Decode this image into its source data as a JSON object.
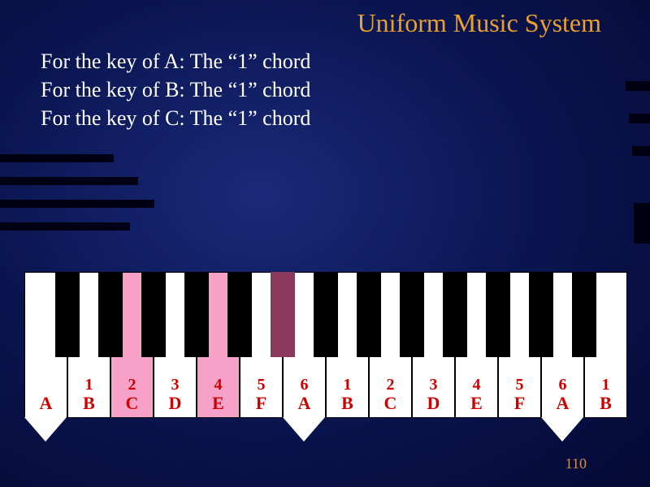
{
  "title": "Uniform Music System",
  "lines": [
    "For the key of A: The “1” chord",
    "For the key of B: The “1” chord",
    "For the key of C: The “1” chord"
  ],
  "page_number": "110",
  "keyboard": {
    "white_key_width": 53,
    "white_keys": [
      {
        "letter": "A",
        "num": "",
        "arrow": true,
        "highlight": false
      },
      {
        "letter": "B",
        "num": "1",
        "arrow": false,
        "highlight": false
      },
      {
        "letter": "C",
        "num": "2",
        "arrow": false,
        "highlight": true
      },
      {
        "letter": "D",
        "num": "3",
        "arrow": false,
        "highlight": false
      },
      {
        "letter": "E",
        "num": "4",
        "arrow": false,
        "highlight": true
      },
      {
        "letter": "F",
        "num": "5",
        "arrow": false,
        "highlight": false
      },
      {
        "letter": "A",
        "num": "6",
        "arrow": true,
        "highlight": false
      },
      {
        "letter": "B",
        "num": "1",
        "arrow": false,
        "highlight": false
      },
      {
        "letter": "C",
        "num": "2",
        "arrow": false,
        "highlight": false
      },
      {
        "letter": "D",
        "num": "3",
        "arrow": false,
        "highlight": false
      },
      {
        "letter": "E",
        "num": "4",
        "arrow": false,
        "highlight": false
      },
      {
        "letter": "F",
        "num": "5",
        "arrow": false,
        "highlight": false
      },
      {
        "letter": "A",
        "num": "6",
        "arrow": true,
        "highlight": false
      },
      {
        "letter": "B",
        "num": "1",
        "arrow": false,
        "highlight": false
      }
    ],
    "black_keys": [
      {
        "after_white_index": 0,
        "highlight": false
      },
      {
        "after_white_index": 1,
        "highlight": false
      },
      {
        "after_white_index": 2,
        "highlight": false
      },
      {
        "after_white_index": 3,
        "highlight": false
      },
      {
        "after_white_index": 4,
        "highlight": false
      },
      {
        "after_white_index": 5,
        "highlight": true
      },
      {
        "after_white_index": 6,
        "highlight": false
      },
      {
        "after_white_index": 7,
        "highlight": false
      },
      {
        "after_white_index": 8,
        "highlight": false
      },
      {
        "after_white_index": 9,
        "highlight": false
      },
      {
        "after_white_index": 10,
        "highlight": false
      },
      {
        "after_white_index": 11,
        "highlight": false
      },
      {
        "after_white_index": 12,
        "highlight": false
      }
    ],
    "colors": {
      "white_key": "#ffffff",
      "highlight_pink": "#f7a0c8",
      "black_key": "#000000",
      "highlight_dark": "#8a3a5a",
      "label_color": "#d00000"
    }
  }
}
